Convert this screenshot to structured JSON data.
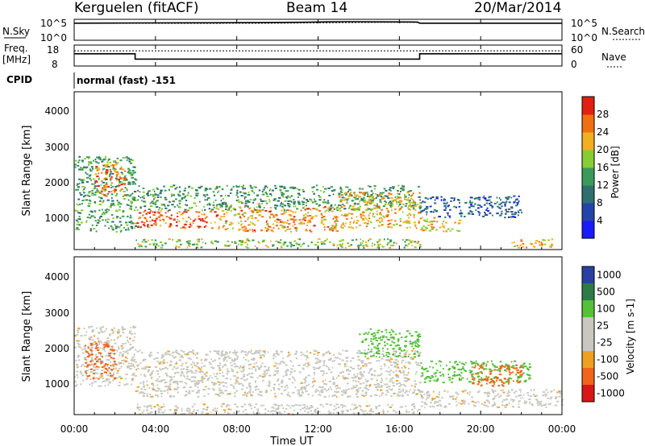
{
  "header": {
    "station": "Kerguelen (fitACF)",
    "beam": "Beam 14",
    "date": "20/Mar/2014"
  },
  "nsky_panel": {
    "left_label": "N.Sky",
    "left_ticks": [
      "10^5",
      "10^0"
    ],
    "right_ticks": [
      "10^5",
      "10^0"
    ],
    "right_label": "N.Search"
  },
  "freq_panel": {
    "left_label_1": "Freq.",
    "left_label_2": "[MHz]",
    "left_ticks": [
      "18",
      "8"
    ],
    "right_ticks": [
      "60",
      "0"
    ],
    "right_label": "Nave"
  },
  "cpid": {
    "label": "CPID",
    "text": "normal (fast) -151"
  },
  "colors": {
    "power_scale": [
      "#1a1aff",
      "#2244aa",
      "#2f6f6f",
      "#3a9a5a",
      "#88cc33",
      "#f0b020",
      "#f07010",
      "#e02010"
    ],
    "velocity_scale": [
      "#d81818",
      "#f0651a",
      "#f0a020",
      "#c8c8c0",
      "#c8c8c0",
      "#55c038",
      "#2e7a48",
      "#2a40a0"
    ],
    "ground_scatter": "#c8c8c0"
  },
  "chart_data": [
    {
      "type": "line",
      "panel": "N.Sky / N.Search",
      "x_ticks": [
        "00:00",
        "04:00",
        "08:00",
        "12:00",
        "16:00",
        "20:00",
        "00:00"
      ],
      "xlim_hours": [
        0,
        24
      ],
      "series": [
        {
          "name": "N.Sky",
          "x": [
            0.0,
            3.0,
            6.0,
            9.0,
            11.0,
            12.5,
            13.5,
            15.0,
            16.9,
            17.0,
            24.0
          ],
          "log10_values": [
            4.6,
            4.65,
            4.7,
            4.75,
            4.85,
            4.95,
            5.0,
            4.95,
            4.9,
            4.6,
            4.6
          ]
        },
        {
          "name": "N.Search",
          "x": [
            0.0,
            6.0,
            10.0,
            12.0,
            14.0,
            16.0,
            16.9,
            17.0,
            24.0
          ],
          "log10_values": [
            4.55,
            4.55,
            4.6,
            4.7,
            4.8,
            4.85,
            4.85,
            4.55,
            4.55
          ]
        }
      ]
    },
    {
      "type": "line",
      "panel": "Freq. / Nave",
      "x_ticks": [
        "00:00",
        "04:00",
        "08:00",
        "12:00",
        "16:00",
        "20:00",
        "00:00"
      ],
      "xlim_hours": [
        0,
        24
      ],
      "left_range": [
        8,
        18
      ],
      "right_range": [
        0,
        60
      ],
      "series": [
        {
          "name": "Freq.",
          "x": [
            0.0,
            3.0,
            3.0,
            17.0,
            17.0,
            24.0
          ],
          "values": [
            14.0,
            14.0,
            11.0,
            11.0,
            14.0,
            14.0
          ]
        },
        {
          "name": "Nave",
          "x": [
            0.0,
            24.0
          ],
          "values": [
            46,
            46
          ]
        }
      ]
    },
    {
      "type": "heatmap",
      "panel": "Power",
      "ylabel": "Slant Range [km]",
      "y_ticks": [
        "1000",
        "2000",
        "3000",
        "4000"
      ],
      "ylim_km": [
        180,
        4600
      ],
      "xlim_hours": [
        0,
        24
      ],
      "colorbar": {
        "label": "Power [dB]",
        "ticks": [
          "4",
          "8",
          "12",
          "16",
          "20",
          "24",
          "28"
        ],
        "range": [
          0,
          32
        ]
      },
      "regions": [
        {
          "start_h": 0.0,
          "end_h": 3.0,
          "low_km": 700,
          "high_km": 2800,
          "level_db": 14
        },
        {
          "start_h": 1.0,
          "end_h": 2.5,
          "low_km": 1700,
          "high_km": 2600,
          "level_db": 26
        },
        {
          "start_h": 3.0,
          "end_h": 7.0,
          "low_km": 800,
          "high_km": 1300,
          "level_db": 27
        },
        {
          "start_h": 3.0,
          "end_h": 17.0,
          "low_km": 1300,
          "high_km": 2000,
          "level_db": 13
        },
        {
          "start_h": 7.0,
          "end_h": 13.0,
          "low_km": 700,
          "high_km": 1400,
          "level_db": 24
        },
        {
          "start_h": 13.0,
          "end_h": 17.0,
          "low_km": 800,
          "high_km": 1800,
          "level_db": 22
        },
        {
          "start_h": 17.0,
          "end_h": 19.0,
          "low_km": 700,
          "high_km": 1100,
          "level_db": 22
        },
        {
          "start_h": 17.0,
          "end_h": 22.0,
          "low_km": 1100,
          "high_km": 1700,
          "level_db": 8
        },
        {
          "start_h": 21.5,
          "end_h": 23.5,
          "low_km": 250,
          "high_km": 500,
          "level_db": 23
        },
        {
          "start_h": 3.0,
          "end_h": 17.0,
          "low_km": 250,
          "high_km": 500,
          "level_db": 18
        }
      ]
    },
    {
      "type": "heatmap",
      "panel": "Velocity",
      "ylabel": "Slant Range [km]",
      "xlabel": "Time UT",
      "y_ticks": [
        "1000",
        "2000",
        "3000",
        "4000"
      ],
      "ylim_km": [
        180,
        4600
      ],
      "xlim_hours": [
        0,
        24
      ],
      "x_ticks": [
        "00:00",
        "04:00",
        "08:00",
        "12:00",
        "16:00",
        "20:00",
        "00:00"
      ],
      "colorbar": {
        "label": "Velocity [m s-1]",
        "ticks": [
          "1000",
          "500",
          "100",
          "25",
          "-25",
          "-100",
          "-500",
          "-1000"
        ]
      },
      "regions": [
        {
          "start_h": 0.0,
          "end_h": 3.0,
          "low_km": 1000,
          "high_km": 2700,
          "velocity": 0
        },
        {
          "start_h": 0.5,
          "end_h": 2.0,
          "low_km": 1200,
          "high_km": 2200,
          "velocity": -300
        },
        {
          "start_h": 3.0,
          "end_h": 17.0,
          "low_km": 700,
          "high_km": 2000,
          "velocity": 0
        },
        {
          "start_h": 3.0,
          "end_h": 17.0,
          "low_km": 200,
          "high_km": 500,
          "velocity": 0
        },
        {
          "start_h": 14.0,
          "end_h": 17.0,
          "low_km": 1800,
          "high_km": 2600,
          "velocity": 150
        },
        {
          "start_h": 17.0,
          "end_h": 22.5,
          "low_km": 1100,
          "high_km": 1700,
          "velocity": 400
        },
        {
          "start_h": 19.5,
          "end_h": 22.0,
          "low_km": 1000,
          "high_km": 1600,
          "velocity": -200
        },
        {
          "start_h": 17.0,
          "end_h": 24.0,
          "low_km": 400,
          "high_km": 900,
          "velocity": 0
        }
      ]
    }
  ]
}
